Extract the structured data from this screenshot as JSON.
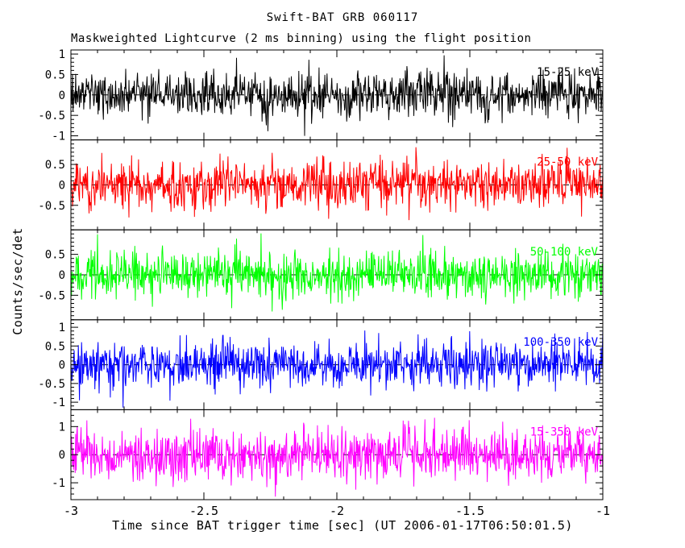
{
  "title": "Swift-BAT GRB 060117",
  "subtitle": "Maskweighted Lightcurve (2 ms binning) using the flight position",
  "ylabel": "Counts/sec/det",
  "xlabel": "Time since BAT trigger time [sec] (UT 2006-01-17T06:50:01.5)",
  "chart_data": {
    "type": "line",
    "title": "Swift-BAT GRB 060117",
    "subtitle": "Maskweighted Lightcurve (2 ms binning) using the flight position",
    "xlabel": "Time since BAT trigger time [sec] (UT 2006-01-17T06:50:01.5)",
    "ylabel": "Counts/sec/det",
    "x_range": [
      -3,
      -1
    ],
    "x_ticks": [
      -3,
      -2.5,
      -2,
      -1.5,
      -1
    ],
    "x_tick_labels": [
      "-3",
      "-2.5",
      "-2",
      "-1.5",
      "-1"
    ],
    "x_minor_step": 0.1,
    "bin_seconds": 0.002,
    "n_points": 1000,
    "grid": false,
    "legend": "inline-panel-labels",
    "zero_line": {
      "style": "dashed",
      "color": "#000000",
      "y": 0
    },
    "panels": [
      {
        "label": "15-25 keV",
        "color": "#000000",
        "y_range": [
          -1.1,
          1.1
        ],
        "y_ticks": [
          1,
          0.5,
          0,
          -0.5,
          -1
        ],
        "y_tick_labels": [
          "1",
          "0.5",
          "0",
          "-0.5",
          "-1"
        ],
        "y_minor_step": 0.1,
        "mean": 0,
        "noise_std": 0.28
      },
      {
        "label": "25-50 keV",
        "color": "#ff0000",
        "y_range": [
          -1.1,
          1.1
        ],
        "y_ticks": [
          0.5,
          0,
          -0.5
        ],
        "y_tick_labels": [
          "0.5",
          "0",
          "-0.5"
        ],
        "y_minor_step": 0.1,
        "mean": 0,
        "noise_std": 0.3
      },
      {
        "label": "50-100 keV",
        "color": "#00ff00",
        "y_range": [
          -1.1,
          1.1
        ],
        "y_ticks": [
          0.5,
          0,
          -0.5
        ],
        "y_tick_labels": [
          "0.5",
          "0",
          "-0.5"
        ],
        "y_minor_step": 0.1,
        "mean": 0,
        "noise_std": 0.3
      },
      {
        "label": "100-350 keV",
        "color": "#0000ff",
        "y_range": [
          -1.2,
          1.2
        ],
        "y_ticks": [
          1,
          0.5,
          0,
          -0.5,
          -1
        ],
        "y_tick_labels": [
          "1",
          "0.5",
          "0",
          "-0.5",
          "-1"
        ],
        "y_minor_step": 0.1,
        "mean": 0,
        "noise_std": 0.31
      },
      {
        "label": "15-350 keV",
        "color": "#ff00ff",
        "y_range": [
          -1.6,
          1.6
        ],
        "y_ticks": [
          1,
          0,
          -1
        ],
        "y_tick_labels": [
          "1",
          "0",
          "-1"
        ],
        "y_minor_step": 0.2,
        "mean": 0,
        "noise_std": 0.46
      }
    ]
  }
}
